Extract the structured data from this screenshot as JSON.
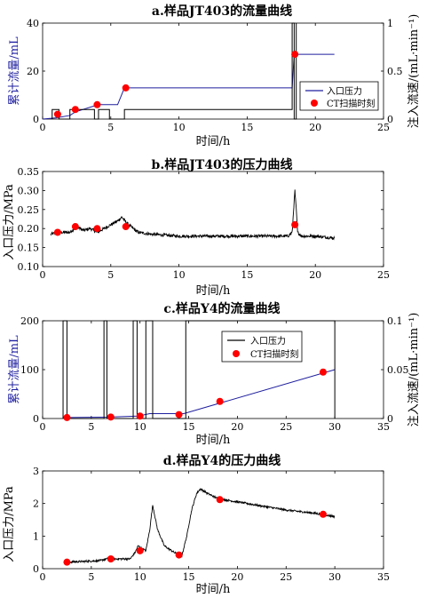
{
  "chart_data": [
    {
      "type": "line",
      "title": "a.样品JT403的流量曲线",
      "xlabel": "时间/h",
      "ylabel": "累计流量/mL",
      "y2label": "注入流速/(mL·min⁻¹)",
      "xlim": [
        0,
        25
      ],
      "ylim": [
        0,
        40
      ],
      "y2lim": [
        0,
        1
      ],
      "xticks": [
        "0",
        "5",
        "10",
        "15",
        "20",
        "25"
      ],
      "yticks": [
        "0",
        "20",
        "40"
      ],
      "y2ticks": [
        "0",
        "0.5",
        "1"
      ],
      "legend": [
        "入口压力",
        "CT扫描时刻"
      ],
      "legend_position": "center-right",
      "series": [
        {
          "role": "cumulative_flow",
          "color": "#1f1f9f",
          "x": [
            0,
            1.0,
            2.0,
            2.4,
            3.8,
            4.1,
            5.5,
            6.0,
            18.3,
            18.45,
            21.4
          ],
          "y": [
            0,
            0.5,
            1.5,
            3,
            5.5,
            6,
            6,
            13,
            13,
            27,
            27
          ]
        },
        {
          "role": "injection_rate",
          "color": "#000000",
          "x": [
            0.7,
            0.7,
            1.2,
            1.2,
            2.0,
            2.0,
            3.8,
            3.8,
            4.1,
            4.1,
            4.9,
            4.9,
            6.0,
            6.0,
            18.3,
            18.3,
            18.45,
            18.45,
            18.6,
            18.6
          ],
          "y": [
            0,
            0.1,
            0.1,
            0,
            0,
            0.1,
            0.1,
            0,
            0,
            0.1,
            0.1,
            0,
            0,
            0.1,
            0.1,
            1.0,
            1.0,
            0,
            0,
            1.0
          ]
        }
      ],
      "ct_scans": {
        "color": "#ff0000",
        "x": [
          1.1,
          2.4,
          4.0,
          6.1,
          18.5
        ],
        "y": [
          2,
          4,
          6,
          13,
          27
        ]
      }
    },
    {
      "type": "line",
      "title": "b.样品JT403的压力曲线",
      "xlabel": "时间/h",
      "ylabel": "入口压力/MPa",
      "xlim": [
        0,
        25
      ],
      "ylim": [
        0.1,
        0.35
      ],
      "xticks": [
        "0",
        "5",
        "10",
        "15",
        "20",
        "25"
      ],
      "yticks": [
        "0.10",
        "0.15",
        "0.20",
        "0.25",
        "0.30",
        "0.35"
      ],
      "series": [
        {
          "role": "inlet_pressure",
          "color": "#000000",
          "noise": 0.004,
          "x": [
            0.6,
            1.2,
            2.0,
            2.5,
            3.0,
            3.5,
            4.0,
            4.5,
            5.0,
            5.5,
            5.8,
            6.3,
            7.0,
            8.0,
            10.0,
            12.0,
            14.0,
            16.0,
            17.5,
            18.0,
            18.3,
            18.5,
            18.6,
            18.7,
            19.0,
            20.0,
            21.4
          ],
          "y": [
            0.185,
            0.19,
            0.19,
            0.205,
            0.195,
            0.2,
            0.19,
            0.2,
            0.21,
            0.22,
            0.23,
            0.21,
            0.19,
            0.185,
            0.18,
            0.18,
            0.18,
            0.18,
            0.18,
            0.18,
            0.19,
            0.3,
            0.25,
            0.19,
            0.18,
            0.18,
            0.175
          ]
        }
      ],
      "ct_scans": {
        "color": "#ff0000",
        "x": [
          1.1,
          2.4,
          4.0,
          6.1,
          18.5
        ],
        "y": [
          0.19,
          0.205,
          0.2,
          0.205,
          0.21
        ]
      }
    },
    {
      "type": "line",
      "title": "c.样品Y4的流量曲线",
      "xlabel": "时间/h",
      "ylabel": "累计流量/mL",
      "y2label": "注入流速/(mL·min⁻¹)",
      "xlim": [
        0,
        35
      ],
      "ylim": [
        0,
        200
      ],
      "y2lim": [
        0,
        0.1
      ],
      "xticks": [
        "0",
        "5",
        "10",
        "15",
        "20",
        "25",
        "30",
        "35"
      ],
      "yticks": [
        "0",
        "100",
        "200"
      ],
      "y2ticks": [
        "0",
        "0.05",
        "0.1"
      ],
      "legend": [
        "入口压力",
        "CT扫描时刻"
      ],
      "legend_position": "top-center",
      "series": [
        {
          "role": "cumulative_flow",
          "color": "#1f1f9f",
          "x": [
            2.5,
            7.0,
            9.8,
            11.0,
            14.5,
            30.0
          ],
          "y": [
            2,
            3,
            5,
            10,
            10,
            100
          ]
        },
        {
          "role": "injection_rate",
          "color": "#000000",
          "x": [
            2.1,
            2.1,
            2.5,
            2.5,
            6.3,
            6.3,
            6.6,
            6.6,
            9.3,
            9.3,
            9.7,
            9.7,
            10.6,
            10.6,
            11.3,
            11.3,
            14.7,
            14.7,
            30.0,
            30.0
          ],
          "y": [
            0,
            0.1,
            0.1,
            0,
            0,
            0.1,
            0.1,
            0,
            0,
            0.1,
            0.1,
            0,
            0,
            0.1,
            0.1,
            0,
            0,
            0.1,
            0.1,
            0
          ]
        }
      ],
      "ct_scans": {
        "color": "#ff0000",
        "x": [
          2.5,
          7.0,
          10.0,
          14.0,
          18.2,
          28.8
        ],
        "y": [
          2,
          3,
          5,
          8,
          35,
          95
        ]
      }
    },
    {
      "type": "line",
      "title": "d.样品Y4的压力曲线",
      "xlabel": "时间/h",
      "ylabel": "入口压力/MPa",
      "xlim": [
        0,
        35
      ],
      "ylim": [
        0,
        3
      ],
      "xticks": [
        "0",
        "5",
        "10",
        "15",
        "20",
        "25",
        "30",
        "35"
      ],
      "yticks": [
        "0",
        "1",
        "2",
        "3"
      ],
      "series": [
        {
          "role": "inlet_pressure",
          "color": "#000000",
          "noise": 0.03,
          "x": [
            2.3,
            4.0,
            6.0,
            6.5,
            7.0,
            9.0,
            9.5,
            9.8,
            10.3,
            10.6,
            11.0,
            11.3,
            11.8,
            12.5,
            13.5,
            14.3,
            14.8,
            15.3,
            15.8,
            16.2,
            17.0,
            18.0,
            20.0,
            22.0,
            25.0,
            28.0,
            30.0
          ],
          "y": [
            0.2,
            0.22,
            0.25,
            0.3,
            0.3,
            0.3,
            0.5,
            0.7,
            0.6,
            0.55,
            1.2,
            1.95,
            1.2,
            0.7,
            0.5,
            0.4,
            1.0,
            1.8,
            2.3,
            2.45,
            2.3,
            2.15,
            2.05,
            1.95,
            1.8,
            1.7,
            1.6
          ]
        }
      ],
      "ct_scans": {
        "color": "#ff0000",
        "x": [
          2.5,
          7.0,
          10.0,
          14.0,
          18.2,
          28.8
        ],
        "y": [
          0.2,
          0.3,
          0.55,
          0.42,
          2.12,
          1.67
        ]
      }
    }
  ]
}
